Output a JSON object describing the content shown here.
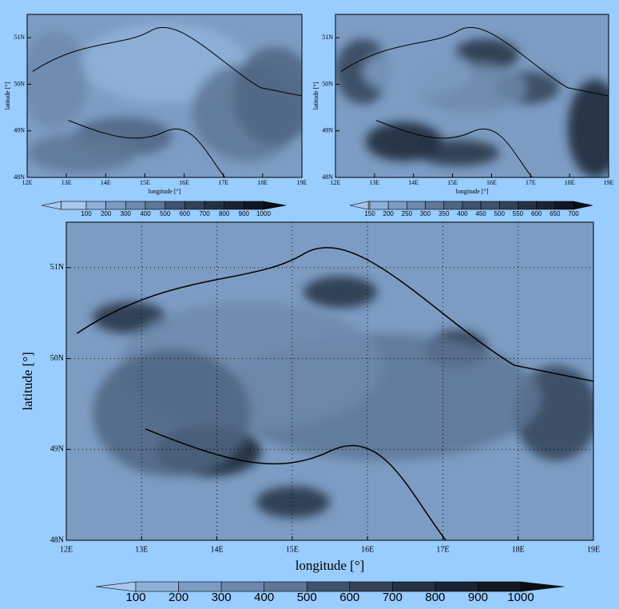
{
  "panels": [
    {
      "x_ticks": [
        "12E",
        "13E",
        "14E",
        "15E",
        "16E",
        "17E",
        "18E",
        "19E"
      ],
      "y_ticks": [
        "51N",
        "50N",
        "49N",
        "48N"
      ],
      "x_label": "longitude [°]",
      "y_label": "latitude [°]",
      "colorbar": [
        100,
        200,
        300,
        400,
        500,
        600,
        700,
        800,
        900,
        1000
      ]
    },
    {
      "x_ticks": [
        "12E",
        "13E",
        "14E",
        "15E",
        "16E",
        "17E",
        "18E",
        "19E"
      ],
      "y_ticks": [
        "51N",
        "50N",
        "49N",
        "48N"
      ],
      "x_label": "longitude [°]",
      "y_label": "latitude [°]",
      "colorbar": [
        150,
        200,
        250,
        300,
        350,
        400,
        450,
        500,
        550,
        600,
        650,
        700
      ]
    },
    {
      "x_ticks": [
        "12E",
        "13E",
        "14E",
        "15E",
        "16E",
        "17E",
        "18E",
        "19E"
      ],
      "y_ticks": [
        "51N",
        "50N",
        "49N",
        "48N"
      ],
      "x_label": "longitude [°]",
      "y_label": "latitude [°]",
      "colorbar": [
        100,
        200,
        300,
        400,
        500,
        600,
        700,
        800,
        900,
        1000
      ]
    }
  ]
}
